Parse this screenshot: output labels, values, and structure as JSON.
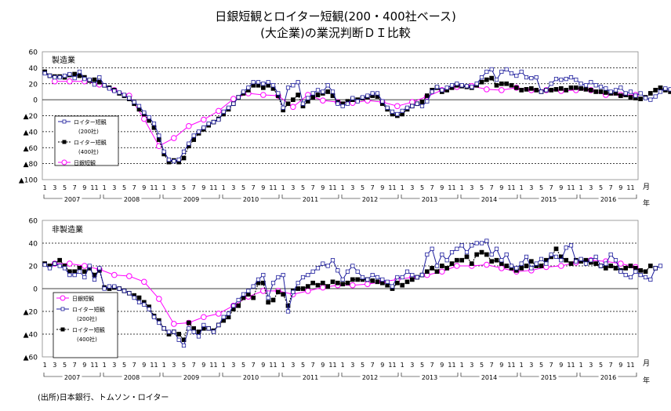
{
  "title_line1": "日銀短観とロイター短観(200・400社ベース)",
  "title_line2": "(大企業)の業況判断ＤＩ比較",
  "source": "(出所)日本銀行、トムソン・ロイター",
  "colors": {
    "tankan": "#ff00ff",
    "r200": "#1c1c9c",
    "r400": "#000000",
    "grid": "#000000"
  },
  "month_unit": "月",
  "year_unit": "年",
  "chart_data": [
    {
      "type": "line",
      "title": "製造業",
      "ylim": [
        -100,
        60
      ],
      "yticks": [
        60,
        40,
        20,
        0,
        -20,
        -40,
        -60,
        -80,
        -100
      ],
      "ytick_labels": [
        "60",
        "40",
        "20",
        "0",
        "▲20",
        "▲40",
        "▲60",
        "▲80",
        "▲100"
      ],
      "years": [
        "2007",
        "2008",
        "2009",
        "2010",
        "2011",
        "2012",
        "2013",
        "2014",
        "2015",
        "2016"
      ],
      "month_ticks": [
        "1",
        "3",
        "5",
        "7",
        "9",
        "11"
      ],
      "legend": [
        "ロイター短観",
        "(200社)",
        "ロイター短観",
        "(400社)",
        "日銀短観"
      ],
      "series": [
        {
          "name": "日銀短観",
          "freq": "quarterly",
          "start_month": 3,
          "values": [
            23,
            23,
            23,
            19,
            12,
            5,
            -24,
            -58,
            -48,
            -33,
            -25,
            -14,
            1,
            8,
            6,
            5,
            -9,
            6,
            -1,
            -3,
            -4,
            -1,
            -3,
            -8,
            -3,
            4,
            12,
            16,
            17,
            13,
            12,
            15,
            12,
            12,
            11,
            12,
            12,
            6,
            6,
            6
          ]
        },
        {
          "name": "ロイター短観 (200社)",
          "freq": "monthly",
          "start_month": 1,
          "values": [
            33,
            30,
            28,
            28,
            30,
            32,
            27,
            35,
            26,
            25,
            19,
            28,
            18,
            14,
            11,
            9,
            6,
            2,
            -3,
            -8,
            -16,
            -22,
            -30,
            -45,
            -65,
            -75,
            -77,
            -75,
            -65,
            -55,
            -45,
            -40,
            -35,
            -30,
            -28,
            -25,
            -15,
            -10,
            -5,
            3,
            10,
            15,
            22,
            22,
            20,
            22,
            18,
            8,
            -10,
            15,
            18,
            22,
            -5,
            2,
            8,
            12,
            10,
            18,
            10,
            -5,
            -8,
            -5,
            2,
            -2,
            3,
            5,
            8,
            8,
            -2,
            -10,
            -15,
            -18,
            -14,
            -10,
            -8,
            -5,
            -8,
            -2,
            10,
            16,
            12,
            15,
            18,
            20,
            18,
            17,
            16,
            20,
            28,
            35,
            38,
            25,
            35,
            38,
            33,
            30,
            35,
            28,
            27,
            28,
            10,
            12,
            20,
            26,
            25,
            26,
            28,
            25,
            20,
            18,
            22,
            18,
            16,
            14,
            10,
            12,
            15,
            8,
            10,
            5,
            8,
            2,
            0,
            4,
            10,
            14,
            13,
            10
          ]
        },
        {
          "name": "ロイター短観 (400社)",
          "freq": "monthly",
          "start_month": 1,
          "values": [
            35,
            30,
            29,
            29,
            28,
            31,
            32,
            30,
            28,
            24,
            25,
            22,
            18,
            15,
            12,
            8,
            5,
            1,
            -5,
            -12,
            -18,
            -26,
            -35,
            -50,
            -68,
            -78,
            -76,
            -78,
            -73,
            -58,
            -50,
            -42,
            -37,
            -32,
            -28,
            -24,
            -18,
            -12,
            -5,
            3,
            8,
            12,
            18,
            18,
            15,
            18,
            14,
            5,
            -13,
            -5,
            0,
            6,
            -8,
            -2,
            3,
            6,
            8,
            10,
            5,
            -3,
            -5,
            -2,
            0,
            0,
            2,
            3,
            5,
            4,
            -5,
            -12,
            -18,
            -20,
            -18,
            -12,
            -8,
            -5,
            -3,
            5,
            12,
            15,
            10,
            12,
            15,
            18,
            17,
            16,
            15,
            18,
            22,
            25,
            27,
            18,
            20,
            20,
            18,
            15,
            12,
            13,
            14,
            12,
            10,
            12,
            12,
            13,
            14,
            12,
            15,
            15,
            14,
            13,
            12,
            10,
            10,
            9,
            8,
            8,
            5,
            6,
            3,
            2,
            1,
            3,
            8,
            12,
            15,
            12,
            10
          ]
        }
      ]
    },
    {
      "type": "line",
      "title": "非製造業",
      "ylim": [
        -60,
        60
      ],
      "yticks": [
        60,
        40,
        20,
        0,
        -20,
        -40,
        -60
      ],
      "ytick_labels": [
        "60",
        "40",
        "20",
        "0",
        "▲20",
        "▲40",
        "▲60"
      ],
      "years": [
        "2007",
        "2008",
        "2009",
        "2010",
        "2011",
        "2012",
        "2013",
        "2014",
        "2015",
        "2016"
      ],
      "month_ticks": [
        "1",
        "3",
        "5",
        "7",
        "9",
        "11"
      ],
      "legend": [
        "日銀短観",
        "ロイター短観",
        "(200社)",
        "ロイター短観",
        "(400社)"
      ],
      "series": [
        {
          "name": "日銀短観",
          "freq": "quarterly",
          "start_month": 3,
          "values": [
            22,
            22,
            20,
            17,
            12,
            11,
            6,
            -9,
            -31,
            -30,
            -25,
            -22,
            -15,
            -7,
            -2,
            -2,
            -5,
            -2,
            1,
            3,
            3,
            4,
            6,
            8,
            10,
            12,
            15,
            20,
            20,
            21,
            18,
            15,
            16,
            19,
            20,
            23,
            25,
            24,
            22,
            19
          ]
        },
        {
          "name": "ロイター短観 (200社)",
          "freq": "monthly",
          "start_month": 1,
          "values": [
            21,
            18,
            22,
            20,
            18,
            12,
            12,
            15,
            10,
            20,
            8,
            18,
            0,
            2,
            2,
            0,
            -2,
            -4,
            -8,
            -12,
            -14,
            -18,
            -25,
            -30,
            -35,
            -38,
            -38,
            -45,
            -50,
            -35,
            -38,
            -42,
            -32,
            -35,
            -38,
            -32,
            -25,
            -22,
            -15,
            -10,
            -5,
            -2,
            2,
            8,
            12,
            -8,
            5,
            10,
            12,
            -20,
            -3,
            5,
            10,
            12,
            15,
            18,
            22,
            20,
            25,
            16,
            8,
            15,
            20,
            15,
            10,
            8,
            12,
            10,
            8,
            6,
            2,
            10,
            10,
            15,
            12,
            10,
            12,
            30,
            35,
            20,
            30,
            25,
            32,
            35,
            38,
            32,
            38,
            40,
            40,
            42,
            30,
            35,
            25,
            30,
            20,
            18,
            22,
            28,
            18,
            22,
            26,
            22,
            30,
            28,
            25,
            36,
            38,
            24,
            26,
            22,
            25,
            28,
            20,
            22,
            30,
            25,
            15,
            12,
            10,
            15,
            12,
            10,
            8,
            18,
            20
          ]
        },
        {
          "name": "ロイター短観 (400社)",
          "freq": "monthly",
          "start_month": 1,
          "values": [
            22,
            20,
            22,
            25,
            20,
            15,
            15,
            18,
            15,
            18,
            12,
            16,
            1,
            0,
            1,
            0,
            -2,
            -4,
            -6,
            -8,
            -12,
            -16,
            -24,
            -28,
            -35,
            -40,
            -38,
            -40,
            -45,
            -30,
            -35,
            -38,
            -35,
            -35,
            -37,
            -32,
            -28,
            -25,
            -18,
            -15,
            -8,
            -5,
            -8,
            5,
            5,
            -12,
            -10,
            -3,
            -5,
            -15,
            -2,
            0,
            0,
            2,
            5,
            3,
            5,
            2,
            6,
            5,
            4,
            5,
            8,
            8,
            8,
            8,
            7,
            6,
            5,
            3,
            0,
            5,
            3,
            6,
            8,
            10,
            12,
            15,
            18,
            15,
            20,
            18,
            22,
            25,
            25,
            28,
            22,
            30,
            32,
            30,
            24,
            25,
            22,
            20,
            18,
            16,
            18,
            20,
            24,
            20,
            20,
            25,
            28,
            35,
            28,
            25,
            22,
            25,
            24,
            25,
            23,
            22,
            20,
            18,
            20,
            18,
            16,
            18,
            20,
            18,
            16,
            15,
            20,
            18
          ]
        }
      ]
    }
  ]
}
